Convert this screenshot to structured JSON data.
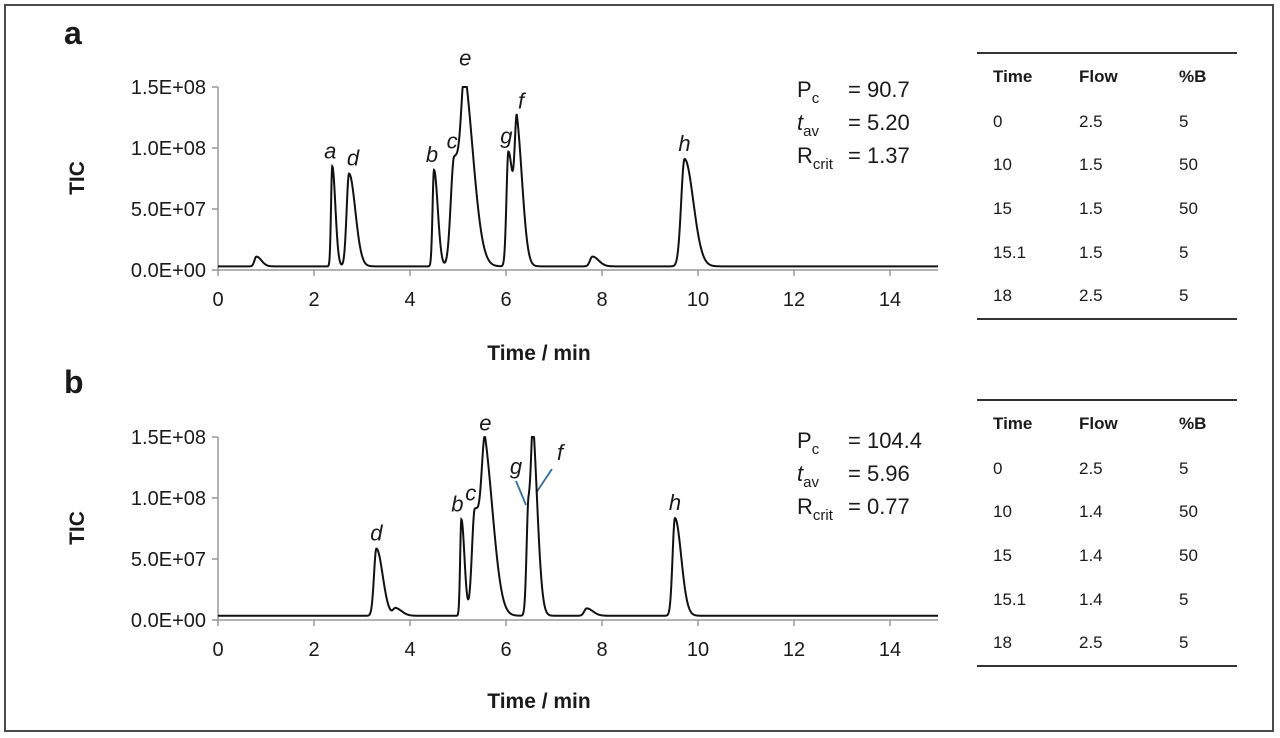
{
  "chart_data": [
    {
      "type": "line",
      "panel": "a",
      "xlabel": "Time / min",
      "ylabel": "TIC",
      "xlim": [
        0,
        15
      ],
      "ylim": [
        0,
        150000000
      ],
      "xticks": [
        0,
        2,
        4,
        6,
        8,
        10,
        12,
        14
      ],
      "xtick_labels": [
        "0",
        "2",
        "4",
        "6",
        "8",
        "10",
        "12",
        "14"
      ],
      "yticks": [
        0,
        50000000,
        100000000,
        150000000
      ],
      "ytick_labels": [
        "0.0E+00",
        "5.0E+07",
        "1.0E+08",
        "1.5E+08"
      ],
      "grid": false,
      "baseline": 3000000,
      "peaks": [
        {
          "label": "",
          "rt": 0.8,
          "height": 8000000,
          "width": 0.04
        },
        {
          "label": "a",
          "rt": 2.38,
          "height": 82000000,
          "width": 0.025
        },
        {
          "label": "d",
          "rt": 2.73,
          "height": 76000000,
          "width": 0.05
        },
        {
          "label": "b",
          "rt": 4.5,
          "height": 79000000,
          "width": 0.03
        },
        {
          "label": "c",
          "rt": 4.92,
          "height": 89000000,
          "width": 0.07
        },
        {
          "label": "e",
          "rt": 5.15,
          "height": 118000000,
          "width": 0.075
        },
        {
          "label": "g",
          "rt": 6.05,
          "height": 94000000,
          "width": 0.04
        },
        {
          "label": "f",
          "rt": 6.23,
          "height": 102000000,
          "width": 0.045
        },
        {
          "label": "",
          "rt": 7.8,
          "height": 8000000,
          "width": 0.05
        },
        {
          "label": "h",
          "rt": 9.72,
          "height": 88000000,
          "width": 0.07
        }
      ],
      "stats": {
        "pc_label": "P",
        "pc_sub": "c",
        "pc_value": "= 90.7",
        "tav_label": "t",
        "tav_sub": "av",
        "tav_value": "= 5.20",
        "rcrit_label": "R",
        "rcrit_sub": "crit",
        "rcrit_value": "= 1.37"
      },
      "gradient_table": {
        "headers": [
          "Time",
          "Flow",
          "%B"
        ],
        "rows": [
          [
            "0",
            "2.5",
            "5"
          ],
          [
            "10",
            "1.5",
            "50"
          ],
          [
            "15",
            "1.5",
            "50"
          ],
          [
            "15.1",
            "1.5",
            "5"
          ],
          [
            "18",
            "2.5",
            "5"
          ]
        ]
      }
    },
    {
      "type": "line",
      "panel": "b",
      "xlabel": "Time / min",
      "ylabel": "TIC",
      "xlim": [
        0,
        15
      ],
      "ylim": [
        0,
        150000000
      ],
      "xticks": [
        0,
        2,
        4,
        6,
        8,
        10,
        12,
        14
      ],
      "xtick_labels": [
        "0",
        "2",
        "4",
        "6",
        "8",
        "10",
        "12",
        "14"
      ],
      "yticks": [
        0,
        50000000,
        100000000,
        150000000
      ],
      "ytick_labels": [
        "0.0E+00",
        "5.0E+07",
        "1.0E+08",
        "1.5E+08"
      ],
      "grid": false,
      "baseline": 3500000,
      "peaks": [
        {
          "label": "d",
          "rt": 3.3,
          "height": 55000000,
          "width": 0.05
        },
        {
          "label": "",
          "rt": 3.7,
          "height": 6000000,
          "width": 0.05
        },
        {
          "label": "b",
          "rt": 5.07,
          "height": 79000000,
          "width": 0.025
        },
        {
          "label": "c",
          "rt": 5.35,
          "height": 87000000,
          "width": 0.06
        },
        {
          "label": "e",
          "rt": 5.57,
          "height": 113000000,
          "width": 0.07
        },
        {
          "label": "g",
          "rt": 6.47,
          "height": 94000000,
          "width": 0.04
        },
        {
          "label": "f",
          "rt": 6.57,
          "height": 96000000,
          "width": 0.04
        },
        {
          "label": "",
          "rt": 7.68,
          "height": 6000000,
          "width": 0.05
        },
        {
          "label": "h",
          "rt": 9.52,
          "height": 80000000,
          "width": 0.05
        }
      ],
      "stats": {
        "pc_label": "P",
        "pc_sub": "c",
        "pc_value": "= 104.4",
        "tav_label": "t",
        "tav_sub": "av",
        "tav_value": "= 5.96",
        "rcrit_label": "R",
        "rcrit_sub": "crit",
        "rcrit_value": "= 0.77"
      },
      "gradient_table": {
        "headers": [
          "Time",
          "Flow",
          "%B"
        ],
        "rows": [
          [
            "0",
            "2.5",
            "5"
          ],
          [
            "10",
            "1.4",
            "50"
          ],
          [
            "15",
            "1.4",
            "50"
          ],
          [
            "15.1",
            "1.4",
            "5"
          ],
          [
            "18",
            "2.5",
            "5"
          ]
        ]
      }
    }
  ]
}
